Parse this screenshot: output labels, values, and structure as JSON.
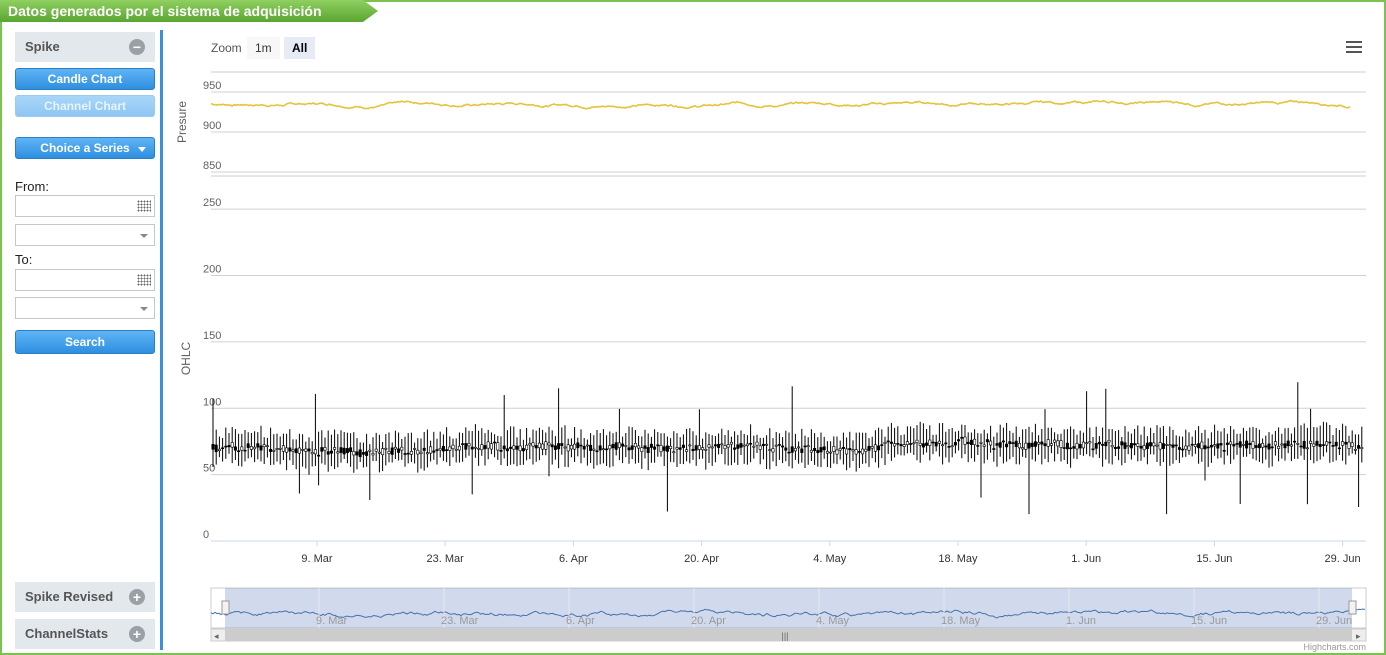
{
  "header": {
    "title": "Datos generados por el sistema de adquisición"
  },
  "sidebar": {
    "spike": {
      "title": "Spike",
      "candle_btn": "Candle Chart",
      "channel_btn": "Channel Chart",
      "series_btn": "Choice a Series",
      "from_label": "From:",
      "to_label": "To:",
      "search_btn": "Search"
    },
    "spike_revised": {
      "title": "Spike Revised"
    },
    "channelstats": {
      "title": "ChannelStats"
    }
  },
  "chart": {
    "zoom_label": "Zoom",
    "zoom_options": [
      "1m",
      "All"
    ],
    "zoom_selected": "All",
    "credits": "Highcharts.com"
  },
  "chart_data": [
    {
      "type": "line",
      "ylabel": "Presure",
      "ylim": [
        850,
        975
      ],
      "yticks": [
        850,
        900,
        950
      ],
      "series": [
        {
          "color": "#e3c53b"
        }
      ]
    },
    {
      "type": "candlestick",
      "ylabel": "OHLC",
      "ylim": [
        0,
        275
      ],
      "yticks": [
        0,
        50,
        100,
        150,
        200,
        250
      ],
      "xticks": [
        "9. Mar",
        "23. Mar",
        "6. Apr",
        "20. Apr",
        "4. May",
        "18. May",
        "1. Jun",
        "15. Jun",
        "29. Jun"
      ]
    }
  ],
  "navigator": {
    "xticks": [
      "9. Mar",
      "23. Mar",
      "6. Apr",
      "20. Apr",
      "4. May",
      "18. May",
      "1. Jun",
      "15. Jun",
      "29. Jun"
    ]
  }
}
